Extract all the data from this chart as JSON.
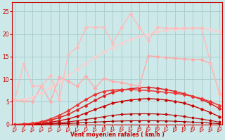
{
  "xlabel": "Vent moyen/en rafales ( km/h )",
  "bg": "#cce8e8",
  "grid_color": "#aacccc",
  "x": [
    0,
    1,
    2,
    3,
    4,
    5,
    6,
    7,
    8,
    9,
    10,
    11,
    12,
    13,
    14,
    15,
    16,
    17,
    18,
    19,
    20,
    21,
    22,
    23
  ],
  "lines": [
    {
      "y": [
        0.0,
        0.0,
        0.0,
        0.05,
        0.1,
        0.15,
        0.2,
        0.3,
        0.4,
        0.5,
        0.6,
        0.7,
        0.75,
        0.8,
        0.8,
        0.8,
        0.8,
        0.75,
        0.7,
        0.6,
        0.5,
        0.4,
        0.3,
        0.15
      ],
      "color": "#aa0000",
      "lw": 0.8,
      "marker": "D",
      "ms": 1.5
    },
    {
      "y": [
        0.0,
        0.0,
        0.05,
        0.1,
        0.2,
        0.35,
        0.55,
        0.8,
        1.1,
        1.4,
        1.7,
        2.0,
        2.2,
        2.3,
        2.35,
        2.35,
        2.3,
        2.2,
        2.0,
        1.75,
        1.45,
        1.15,
        0.85,
        0.5
      ],
      "color": "#bb0000",
      "lw": 0.8,
      "marker": "D",
      "ms": 1.5
    },
    {
      "y": [
        0.0,
        0.0,
        0.1,
        0.25,
        0.5,
        0.8,
        1.2,
        1.8,
        2.5,
        3.3,
        4.0,
        4.7,
        5.1,
        5.4,
        5.6,
        5.7,
        5.6,
        5.4,
        5.1,
        4.7,
        4.1,
        3.4,
        2.6,
        1.7
      ],
      "color": "#cc0000",
      "lw": 1.0,
      "marker": "D",
      "ms": 1.8
    },
    {
      "y": [
        0.0,
        0.05,
        0.2,
        0.5,
        0.9,
        1.5,
        2.2,
        3.2,
        4.2,
        5.3,
        6.3,
        7.1,
        7.6,
        7.9,
        8.1,
        8.2,
        8.0,
        7.7,
        7.3,
        6.8,
        6.2,
        5.5,
        4.6,
        3.5
      ],
      "color": "#dd2222",
      "lw": 1.1,
      "marker": "D",
      "ms": 2.0
    },
    {
      "y": [
        0.0,
        0.05,
        0.25,
        0.6,
        1.2,
        2.0,
        3.0,
        4.3,
        5.5,
        6.6,
        7.3,
        7.6,
        7.7,
        7.7,
        7.6,
        7.5,
        7.3,
        7.1,
        6.9,
        6.6,
        6.2,
        5.7,
        5.0,
        4.2
      ],
      "color": "#ee3333",
      "lw": 1.1,
      "marker": "D",
      "ms": 2.0
    },
    {
      "y": [
        5.3,
        5.2,
        5.1,
        8.5,
        5.0,
        10.5,
        9.5,
        8.5,
        10.7,
        8.0,
        10.2,
        9.5,
        9.3,
        8.8,
        8.5,
        15.2,
        15.0,
        14.8,
        14.6,
        14.5,
        14.4,
        14.3,
        13.5,
        6.8
      ],
      "color": "#ffaaaa",
      "lw": 1.0,
      "marker": "D",
      "ms": 2.0
    },
    {
      "y": [
        5.3,
        5.5,
        6.0,
        7.0,
        8.2,
        9.5,
        10.8,
        12.2,
        13.5,
        14.8,
        16.0,
        17.0,
        18.0,
        18.8,
        19.5,
        20.0,
        20.5,
        20.8,
        21.0,
        21.2,
        21.3,
        21.3,
        21.0,
        20.5
      ],
      "color": "#ffcccc",
      "lw": 1.0,
      "marker": "D",
      "ms": 2.0
    },
    {
      "y": [
        5.4,
        13.5,
        8.5,
        8.5,
        10.8,
        5.5,
        15.5,
        17.0,
        21.5,
        21.5,
        21.5,
        18.0,
        21.5,
        24.5,
        21.5,
        18.5,
        21.5,
        21.3,
        21.3,
        21.3,
        21.3,
        21.3,
        13.5,
        6.8
      ],
      "color": "#ffbbbb",
      "lw": 1.0,
      "marker": "D",
      "ms": 2.0
    }
  ],
  "ylim": [
    0,
    27
  ],
  "xlim": [
    -0.3,
    23.3
  ],
  "yticks": [
    0,
    5,
    10,
    15,
    20,
    25
  ],
  "xticks": [
    0,
    1,
    2,
    3,
    4,
    5,
    6,
    7,
    8,
    9,
    10,
    11,
    12,
    13,
    14,
    15,
    16,
    17,
    18,
    19,
    20,
    21,
    22,
    23
  ]
}
